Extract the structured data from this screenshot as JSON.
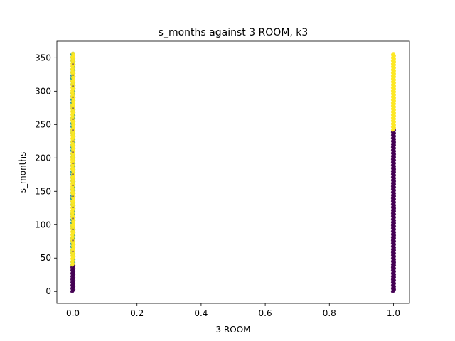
{
  "chart_data": {
    "type": "scatter",
    "title": "s_months against 3 ROOM, k3",
    "xlabel": "3 ROOM",
    "ylabel": "s_months",
    "xlim": [
      -0.05,
      1.05
    ],
    "ylim": [
      -17.85,
      374.85
    ],
    "x_ticks": [
      0.0,
      0.2,
      0.4,
      0.6,
      0.8,
      1.0
    ],
    "x_tick_labels": [
      "0.0",
      "0.2",
      "0.4",
      "0.6",
      "0.8",
      "1.0"
    ],
    "y_ticks": [
      0,
      50,
      100,
      150,
      200,
      250,
      300,
      350
    ],
    "y_tick_labels": [
      "0",
      "50",
      "100",
      "150",
      "200",
      "250",
      "300",
      "350"
    ],
    "grid": false,
    "colormap": "viridis",
    "cluster_colors": [
      "#440154",
      "#21918c",
      "#fde725"
    ],
    "series": [
      {
        "x": 0,
        "cluster": 0,
        "y_range": [
          0,
          40
        ],
        "color": "#440154"
      },
      {
        "x": 0,
        "cluster": 1,
        "y_range": [
          40,
          357
        ],
        "color": "#21918c"
      },
      {
        "x": 0,
        "cluster": 2,
        "y_range": [
          40,
          357
        ],
        "color": "#fde725"
      },
      {
        "x": 1,
        "cluster": 0,
        "y_range": [
          0,
          242
        ],
        "color": "#440154"
      },
      {
        "x": 1,
        "cluster": 2,
        "y_range": [
          242,
          357
        ],
        "color": "#fde725"
      }
    ]
  }
}
